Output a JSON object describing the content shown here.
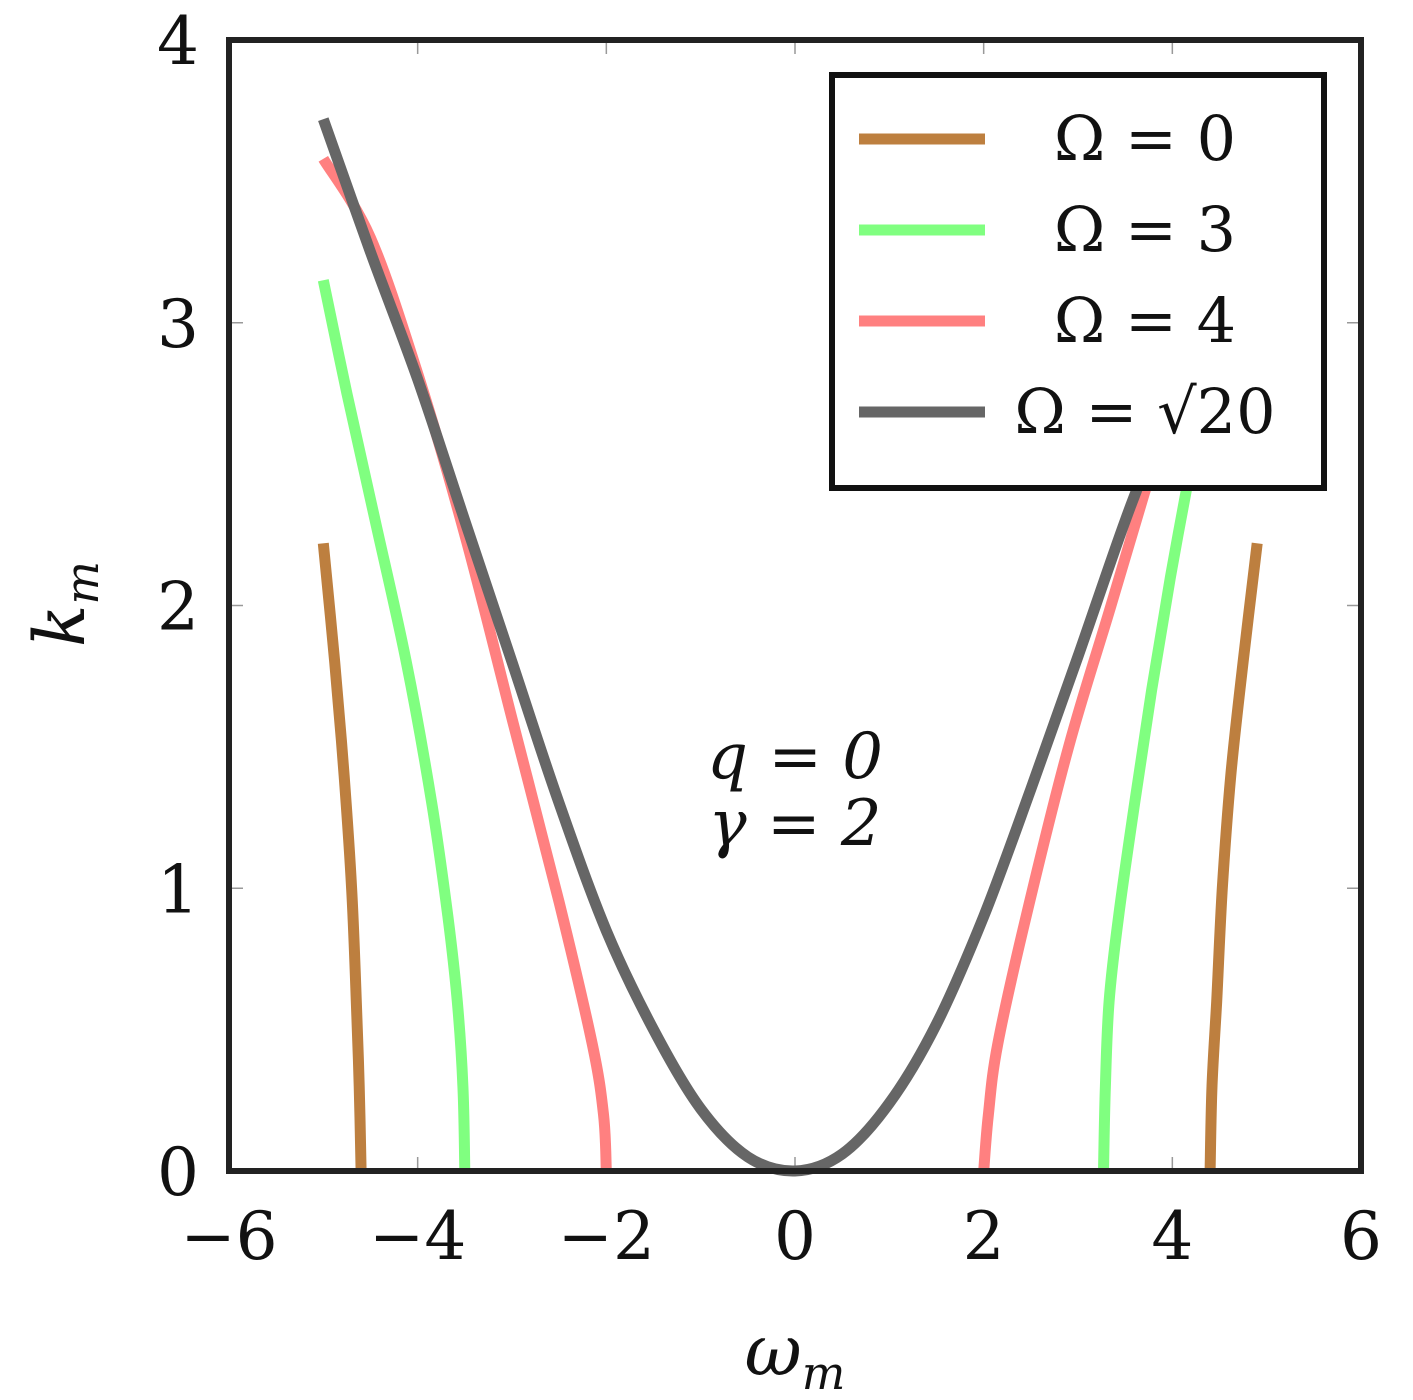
{
  "chart_data": {
    "type": "line",
    "xlabel": "ω",
    "xlabel_sub": "m",
    "ylabel": "k",
    "ylabel_sub": "m",
    "xlim": [
      -6,
      6
    ],
    "ylim": [
      0,
      4
    ],
    "xticks": [
      -6,
      -4,
      -2,
      0,
      2,
      4,
      6
    ],
    "xtick_labels": [
      "−6",
      "−4",
      "−2",
      "0",
      "2",
      "4",
      "6"
    ],
    "yticks": [
      0,
      1,
      2,
      3,
      4
    ],
    "ytick_labels": [
      "0",
      "1",
      "2",
      "3",
      "4"
    ],
    "annotations": [
      {
        "text": "q = 0"
      },
      {
        "text": "γ = 2"
      }
    ],
    "legend_position": "top-right",
    "series": [
      {
        "name": "Ω = 0",
        "color": "#bd7f3f",
        "branches": [
          [
            [
              -4.6,
              0.0
            ],
            [
              -4.62,
              0.3
            ],
            [
              -4.65,
              0.6
            ],
            [
              -4.7,
              1.0
            ],
            [
              -4.78,
              1.4
            ],
            [
              -4.88,
              1.8
            ],
            [
              -5.0,
              2.22
            ]
          ],
          [
            [
              4.4,
              0.0
            ],
            [
              4.42,
              0.3
            ],
            [
              4.47,
              0.6
            ],
            [
              4.53,
              1.0
            ],
            [
              4.62,
              1.4
            ],
            [
              4.75,
              1.8
            ],
            [
              4.9,
              2.22
            ]
          ]
        ]
      },
      {
        "name": "Ω = 3",
        "color": "#80ff80",
        "branches": [
          [
            [
              -3.5,
              0.0
            ],
            [
              -3.52,
              0.3
            ],
            [
              -3.58,
              0.6
            ],
            [
              -3.68,
              0.9
            ],
            [
              -3.85,
              1.3
            ],
            [
              -4.12,
              1.8
            ],
            [
              -4.45,
              2.3
            ],
            [
              -4.75,
              2.75
            ],
            [
              -5.0,
              3.15
            ]
          ],
          [
            [
              3.27,
              0.0
            ],
            [
              3.29,
              0.3
            ],
            [
              3.33,
              0.6
            ],
            [
              3.43,
              0.9
            ],
            [
              3.6,
              1.3
            ],
            [
              3.78,
              1.7
            ],
            [
              3.98,
              2.1
            ],
            [
              4.2,
              2.5
            ]
          ]
        ]
      },
      {
        "name": "Ω = 4",
        "color": "#ff8080",
        "branches": [
          [
            [
              -2.0,
              0.0
            ],
            [
              -2.03,
              0.2
            ],
            [
              -2.15,
              0.45
            ],
            [
              -2.5,
              0.95
            ],
            [
              -3.0,
              1.6
            ],
            [
              -3.5,
              2.25
            ],
            [
              -4.0,
              2.82
            ],
            [
              -4.5,
              3.3
            ],
            [
              -5.0,
              3.58
            ]
          ],
          [
            [
              2.0,
              0.0
            ],
            [
              2.05,
              0.2
            ],
            [
              2.15,
              0.45
            ],
            [
              2.45,
              0.9
            ],
            [
              2.9,
              1.5
            ],
            [
              3.35,
              2.0
            ],
            [
              3.75,
              2.45
            ],
            [
              3.9,
              2.6
            ]
          ]
        ]
      },
      {
        "name": "Ω = √20",
        "color": "#666666",
        "branches": [
          [
            [
              -5.0,
              3.72
            ],
            [
              -4.5,
              3.25
            ],
            [
              -4.0,
              2.8
            ],
            [
              -3.5,
              2.3
            ],
            [
              -3.0,
              1.8
            ],
            [
              -2.5,
              1.3
            ],
            [
              -2.0,
              0.85
            ],
            [
              -1.5,
              0.5
            ],
            [
              -1.0,
              0.22
            ],
            [
              -0.5,
              0.05
            ],
            [
              0.0,
              0.0
            ],
            [
              0.5,
              0.06
            ],
            [
              1.0,
              0.24
            ],
            [
              1.5,
              0.52
            ],
            [
              2.0,
              0.9
            ],
            [
              2.5,
              1.35
            ],
            [
              3.0,
              1.82
            ],
            [
              3.5,
              2.3
            ],
            [
              3.85,
              2.6
            ]
          ]
        ]
      }
    ]
  }
}
